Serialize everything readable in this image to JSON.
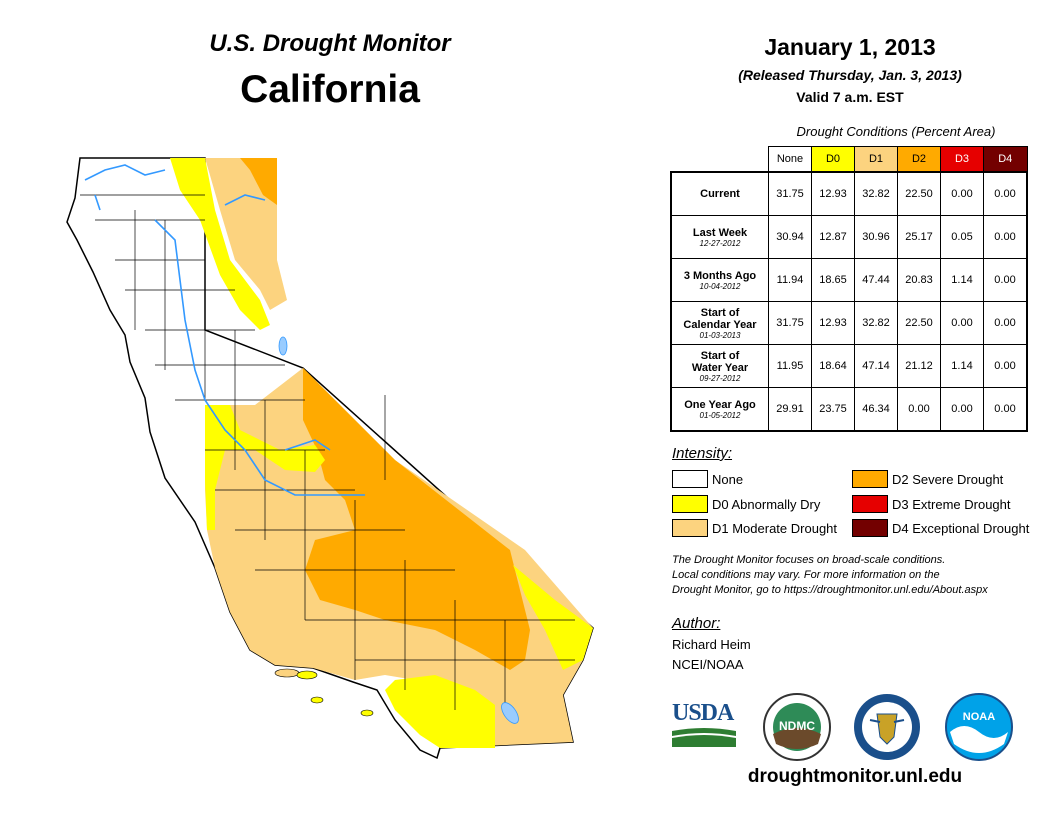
{
  "header": {
    "subtitle": "U.S. Drought Monitor",
    "title": "California",
    "date": "January 1, 2013",
    "released": "(Released Thursday, Jan. 3, 2013)",
    "valid": "Valid 7 a.m. EST"
  },
  "table": {
    "caption": "Drought Conditions (Percent Area)",
    "columns": [
      "None",
      "D0",
      "D1",
      "D2",
      "D3",
      "D4"
    ],
    "column_colors": [
      "#ffffff",
      "#ffff00",
      "#fcd37f",
      "#ffaa00",
      "#e60000",
      "#730000"
    ],
    "rows": [
      {
        "label": "Current",
        "date": "",
        "values": [
          "31.75",
          "12.93",
          "32.82",
          "22.50",
          "0.00",
          "0.00"
        ]
      },
      {
        "label": "Last Week",
        "date": "12-27-2012",
        "values": [
          "30.94",
          "12.87",
          "30.96",
          "25.17",
          "0.05",
          "0.00"
        ]
      },
      {
        "label": "3 Months Ago",
        "date": "10-04-2012",
        "values": [
          "11.94",
          "18.65",
          "47.44",
          "20.83",
          "1.14",
          "0.00"
        ]
      },
      {
        "label": "Start of\nCalendar Year",
        "date": "01-03-2013",
        "values": [
          "31.75",
          "12.93",
          "32.82",
          "22.50",
          "0.00",
          "0.00"
        ]
      },
      {
        "label": "Start of\nWater Year",
        "date": "09-27-2012",
        "values": [
          "11.95",
          "18.64",
          "47.14",
          "21.12",
          "1.14",
          "0.00"
        ]
      },
      {
        "label": "One Year Ago",
        "date": "01-05-2012",
        "values": [
          "29.91",
          "23.75",
          "46.34",
          "0.00",
          "0.00",
          "0.00"
        ]
      }
    ]
  },
  "legend": {
    "heading": "Intensity:",
    "items": [
      {
        "label": "None",
        "color": "#ffffff"
      },
      {
        "label": "D0 Abnormally Dry",
        "color": "#ffff00"
      },
      {
        "label": "D1 Moderate Drought",
        "color": "#fcd37f"
      },
      {
        "label": "D2 Severe Drought",
        "color": "#ffaa00"
      },
      {
        "label": "D3 Extreme Drought",
        "color": "#e60000"
      },
      {
        "label": "D4 Exceptional Drought",
        "color": "#730000"
      }
    ]
  },
  "note": {
    "line1": "The Drought Monitor focuses on broad-scale conditions.",
    "line2": "Local conditions may vary. For more information on the",
    "line3": "Drought Monitor, go to https://droughtmonitor.unl.edu/About.aspx"
  },
  "author": {
    "heading": "Author:",
    "name": "Richard Heim",
    "org": "NCEI/NOAA"
  },
  "logos": {
    "usda": "USDA",
    "ndmc": "NDMC",
    "noaa": "NOAA"
  },
  "footer": {
    "url": "droughtmonitor.unl.edu"
  }
}
